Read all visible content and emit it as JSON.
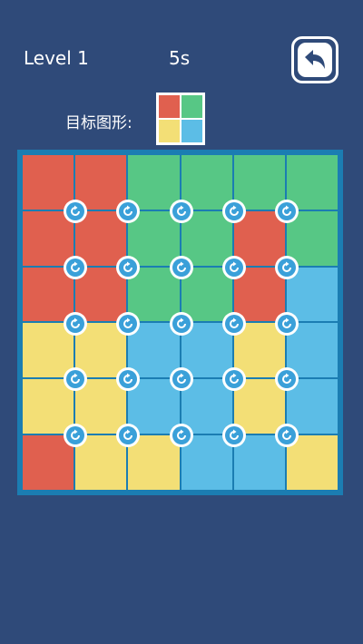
{
  "header": {
    "level_label": "Level 1",
    "timer": "5s",
    "back_icon": "back-arrow-icon"
  },
  "target": {
    "label": "目标图形:",
    "pattern": [
      "red",
      "green",
      "yellow",
      "blue"
    ]
  },
  "colors": {
    "red": "#e0604f",
    "green": "#57c785",
    "yellow": "#f3df76",
    "blue": "#5cbde6",
    "background": "#2f4a79",
    "board_border": "#1b7db2"
  },
  "board": {
    "rows": 6,
    "cols": 6,
    "cells": [
      [
        "red",
        "red",
        "green",
        "green",
        "green",
        "green"
      ],
      [
        "red",
        "red",
        "green",
        "green",
        "red",
        "green"
      ],
      [
        "red",
        "red",
        "green",
        "green",
        "red",
        "blue"
      ],
      [
        "yellow",
        "yellow",
        "blue",
        "blue",
        "yellow",
        "blue"
      ],
      [
        "yellow",
        "yellow",
        "blue",
        "blue",
        "yellow",
        "blue"
      ],
      [
        "red",
        "yellow",
        "yellow",
        "blue",
        "blue",
        "yellow"
      ]
    ],
    "rotator_icon": "rotate-icon",
    "rotator_rows": 5,
    "rotator_cols": 5
  }
}
